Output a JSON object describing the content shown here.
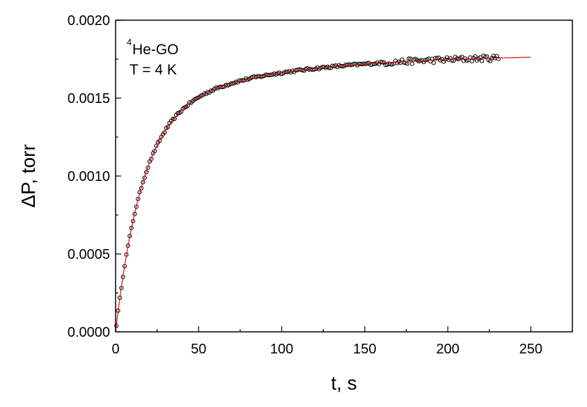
{
  "chart_data": {
    "type": "scatter",
    "title": "",
    "xlabel": "t, s",
    "ylabel": "ΔP, torr",
    "xlim": [
      0,
      275
    ],
    "ylim": [
      0,
      0.002
    ],
    "x_ticks": [
      "0",
      "50",
      "100",
      "150",
      "200",
      "250"
    ],
    "y_ticks": [
      "0.0000",
      "0.0005",
      "0.0010",
      "0.0015",
      "0.0020"
    ],
    "annotation": {
      "isotope_superscript": "4",
      "species": "He-GO",
      "temperature": "T = 4 K"
    },
    "grid": false,
    "series": [
      {
        "kind": "markers",
        "marker": "open-circle",
        "color": "#000000",
        "x_start": 0.5,
        "x_step": 1.0,
        "x_end": 231,
        "shape": "exponential rise with noise",
        "plateau": 0.00177,
        "noise_note": "small scatter, larger beyond t = 160 s"
      },
      {
        "kind": "line",
        "color": "#d62020",
        "x_start": 0,
        "x_end": 250,
        "shape": "double-exponential fit",
        "components": [
          {
            "amplitude": 0.00138,
            "tau_s": 16
          },
          {
            "amplitude": 0.0004,
            "tau_s": 80
          }
        ]
      }
    ]
  }
}
